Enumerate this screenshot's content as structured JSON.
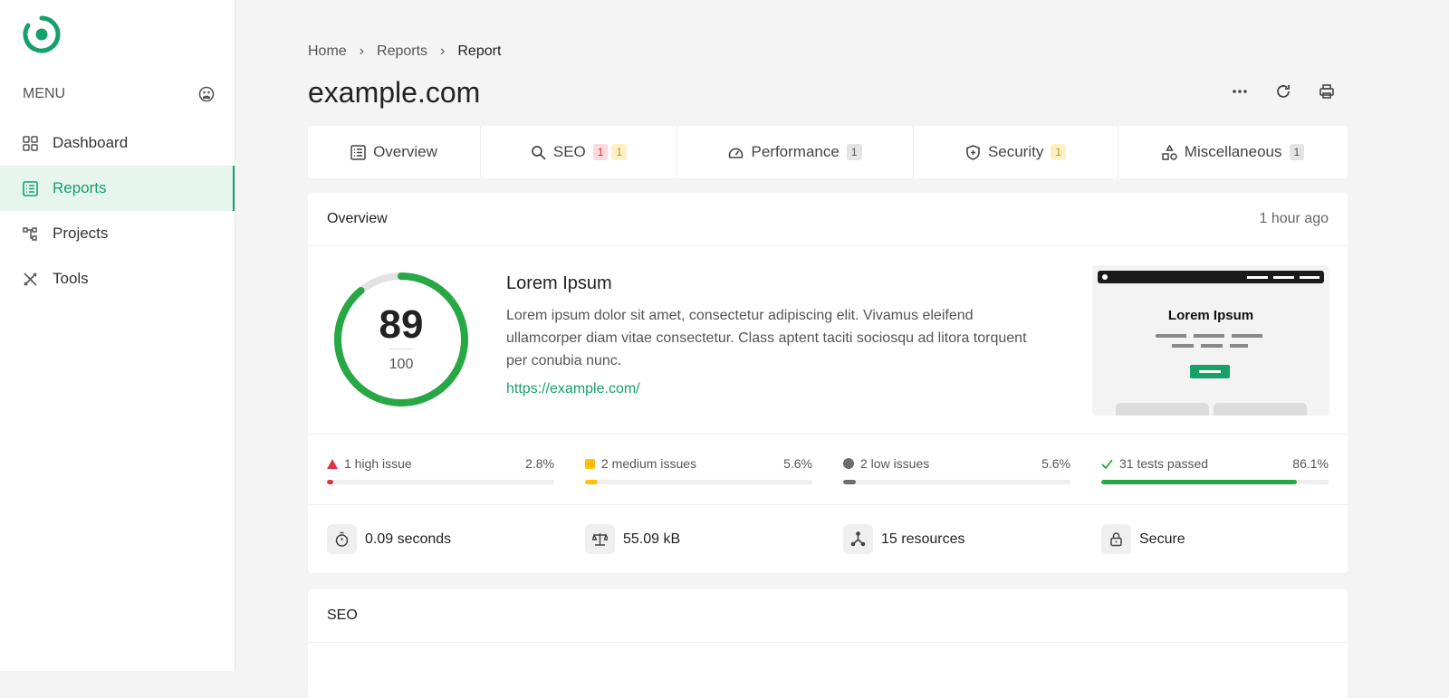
{
  "sidebar": {
    "menu_label": "MENU",
    "items": [
      {
        "label": "Dashboard",
        "icon": "grid-icon"
      },
      {
        "label": "Reports",
        "icon": "list-icon",
        "active": true
      },
      {
        "label": "Projects",
        "icon": "hierarchy-icon"
      },
      {
        "label": "Tools",
        "icon": "tools-icon"
      }
    ]
  },
  "breadcrumb": [
    "Home",
    "Reports",
    "Report"
  ],
  "title": "example.com",
  "tabs": [
    {
      "label": "Overview"
    },
    {
      "label": "SEO",
      "badges": [
        "1",
        "1"
      ]
    },
    {
      "label": "Performance",
      "badges": [
        "1"
      ]
    },
    {
      "label": "Security",
      "badges": [
        "1"
      ]
    },
    {
      "label": "Miscellaneous",
      "badges": [
        "1"
      ]
    }
  ],
  "overview": {
    "header": "Overview",
    "time": "1 hour ago",
    "score": "89",
    "score_max": "100",
    "score_value": 89,
    "site_title": "Lorem Ipsum",
    "description": "Lorem ipsum dolor sit amet, consectetur adipiscing elit. Vivamus eleifend ullamcorper diam vitae consectetur. Class aptent taciti sociosqu ad litora torquent per conubia nunc.",
    "url": "https://example.com/",
    "preview_title": "Lorem Ipsum"
  },
  "issues": [
    {
      "label": "1 high issue",
      "pct": "2.8%",
      "value": 2.8,
      "color": "#dc3545"
    },
    {
      "label": "2 medium issues",
      "pct": "5.6%",
      "value": 5.6,
      "color": "#ffc107"
    },
    {
      "label": "2 low issues",
      "pct": "5.6%",
      "value": 5.6,
      "color": "#6c6c6c"
    },
    {
      "label": "31 tests passed",
      "pct": "86.1%",
      "value": 86.1,
      "color": "#28a745"
    }
  ],
  "stats": [
    {
      "label": "0.09 seconds",
      "icon": "stopwatch-icon"
    },
    {
      "label": "55.09 kB",
      "icon": "scale-icon"
    },
    {
      "label": "15 resources",
      "icon": "resources-icon"
    },
    {
      "label": "Secure",
      "icon": "lock-icon"
    }
  ],
  "seo": {
    "header": "SEO"
  },
  "colors": {
    "accent": "#16a06a",
    "score": "#28a745"
  }
}
